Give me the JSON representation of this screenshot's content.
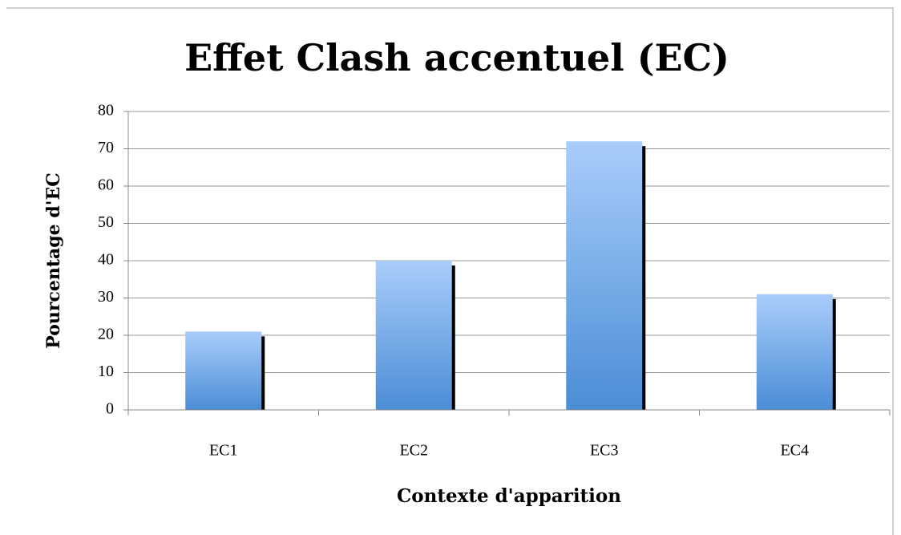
{
  "chart_data": {
    "type": "bar",
    "title": "Effet Clash accentuel (EC)",
    "x_label": "Contexte d'apparition",
    "y_label": "Pourcentage d'EC",
    "categories": [
      "EC1",
      "EC2",
      "EC3",
      "EC4"
    ],
    "values": [
      21,
      40,
      72,
      31
    ],
    "color": "#5a98dd",
    "ylim": [
      0,
      80
    ],
    "yticks": [
      0,
      10,
      20,
      30,
      40,
      50,
      60,
      70,
      80
    ],
    "grid": true
  }
}
